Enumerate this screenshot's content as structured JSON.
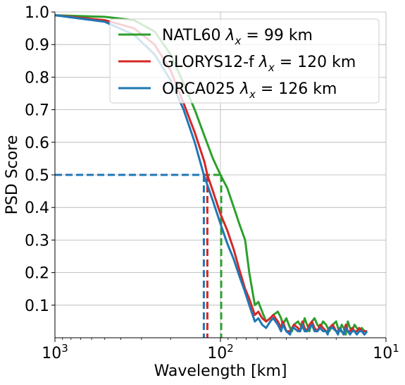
{
  "chart_data": {
    "type": "line",
    "xlabel": "Wavelength [km]",
    "ylabel": "PSD Score",
    "xscale": "log",
    "x_reversed": true,
    "xlim": [
      1000,
      10
    ],
    "ylim": [
      0,
      1
    ],
    "yticks": [
      0.1,
      0.2,
      0.3,
      0.4,
      0.5,
      0.6,
      0.7,
      0.8,
      0.9,
      1.0
    ],
    "ytick_labels": [
      "0.1",
      "0.2",
      "0.3",
      "0.4",
      "0.5",
      "0.6",
      "0.7",
      "0.8",
      "0.9",
      "1.0"
    ],
    "xticks": [
      {
        "value": 1000,
        "base": "10",
        "exp": "3"
      },
      {
        "value": 100,
        "base": "10",
        "exp": "2"
      },
      {
        "value": 10,
        "base": "10",
        "exp": "1"
      }
    ],
    "grid": true,
    "legend_position": "top-right",
    "threshold": 0.5,
    "series": [
      {
        "name": "NATL60",
        "label_suffix": " = 99 km",
        "color": "#2ca02c",
        "lambda_x": 99,
        "x": [
          1000,
          500,
          333,
          250,
          200,
          167,
          143,
          125,
          111,
          100,
          91,
          83,
          77,
          71,
          67,
          62,
          59,
          56,
          53,
          50,
          48,
          45,
          43,
          42,
          40,
          38,
          37,
          36,
          34,
          33,
          32,
          31,
          30,
          29,
          28,
          27,
          26,
          25,
          24,
          23,
          22.5,
          22,
          21,
          20,
          19.5,
          19,
          18.5,
          18,
          17.5,
          17,
          16.5,
          16,
          15.5,
          15,
          14.5,
          14,
          13.5,
          13
        ],
        "y": [
          0.99,
          0.985,
          0.975,
          0.94,
          0.87,
          0.78,
          0.7,
          0.62,
          0.55,
          0.5,
          0.46,
          0.4,
          0.35,
          0.3,
          0.2,
          0.1,
          0.11,
          0.08,
          0.05,
          0.06,
          0.07,
          0.08,
          0.06,
          0.04,
          0.06,
          0.03,
          0.02,
          0.04,
          0.05,
          0.04,
          0.03,
          0.06,
          0.04,
          0.02,
          0.05,
          0.06,
          0.04,
          0.03,
          0.05,
          0.04,
          0.03,
          0.02,
          0.04,
          0.05,
          0.03,
          0.02,
          0.04,
          0.03,
          0.01,
          0.05,
          0.03,
          0.02,
          0.04,
          0.03,
          0.02,
          0.03,
          0.02,
          0.02
        ]
      },
      {
        "name": "GLORYS12-f",
        "label_suffix": " = 120 km",
        "color": "#d62728",
        "lambda_x": 120,
        "x": [
          1000,
          500,
          333,
          250,
          200,
          167,
          143,
          125,
          120,
          111,
          100,
          91,
          83,
          77,
          71,
          67,
          62,
          59,
          56,
          53,
          50,
          48,
          45,
          43,
          42,
          40,
          38,
          37,
          36,
          34,
          33,
          32,
          31,
          30,
          29,
          28,
          27,
          26,
          25,
          24,
          23,
          22.5,
          22,
          21,
          20,
          19.5,
          19,
          18.5,
          18,
          17.5,
          17,
          16.5,
          16,
          15.5,
          15,
          14.5,
          14,
          13.5,
          13
        ],
        "y": [
          0.99,
          0.975,
          0.95,
          0.9,
          0.82,
          0.72,
          0.63,
          0.54,
          0.5,
          0.45,
          0.38,
          0.33,
          0.27,
          0.21,
          0.15,
          0.12,
          0.07,
          0.08,
          0.06,
          0.05,
          0.06,
          0.07,
          0.05,
          0.03,
          0.05,
          0.02,
          0.02,
          0.03,
          0.04,
          0.03,
          0.02,
          0.05,
          0.03,
          0.02,
          0.04,
          0.05,
          0.03,
          0.02,
          0.04,
          0.03,
          0.02,
          0.02,
          0.03,
          0.04,
          0.02,
          0.02,
          0.03,
          0.02,
          0.01,
          0.04,
          0.02,
          0.02,
          0.03,
          0.02,
          0.02,
          0.03,
          0.02,
          0.02,
          0.02
        ]
      },
      {
        "name": "ORCA025",
        "label_suffix": " = 126 km",
        "color": "#1f77b4",
        "lambda_x": 126,
        "x": [
          1000,
          500,
          333,
          250,
          200,
          167,
          143,
          126,
          111,
          100,
          91,
          83,
          77,
          71,
          67,
          62,
          59,
          56,
          53,
          50,
          48,
          45,
          43,
          42,
          40,
          38,
          37,
          36,
          34,
          33,
          32,
          31,
          30,
          29,
          28,
          27,
          26,
          25,
          24,
          23,
          22.5,
          22,
          21,
          20,
          19.5,
          19,
          18.5,
          18,
          17.5,
          17,
          16.5,
          16,
          15.5,
          15,
          14.5,
          14,
          13.5,
          13
        ],
        "y": [
          0.99,
          0.97,
          0.93,
          0.87,
          0.79,
          0.7,
          0.6,
          0.5,
          0.42,
          0.35,
          0.29,
          0.24,
          0.19,
          0.14,
          0.1,
          0.05,
          0.06,
          0.04,
          0.03,
          0.05,
          0.06,
          0.04,
          0.02,
          0.04,
          0.02,
          0.01,
          0.03,
          0.03,
          0.02,
          0.02,
          0.04,
          0.02,
          0.02,
          0.03,
          0.04,
          0.02,
          0.02,
          0.03,
          0.02,
          0.02,
          0.01,
          0.03,
          0.03,
          0.02,
          0.01,
          0.03,
          0.02,
          0.01,
          0.03,
          0.02,
          0.01,
          0.02,
          0.02,
          0.01,
          0.02,
          0.02,
          0.01,
          0.02
        ]
      }
    ]
  }
}
